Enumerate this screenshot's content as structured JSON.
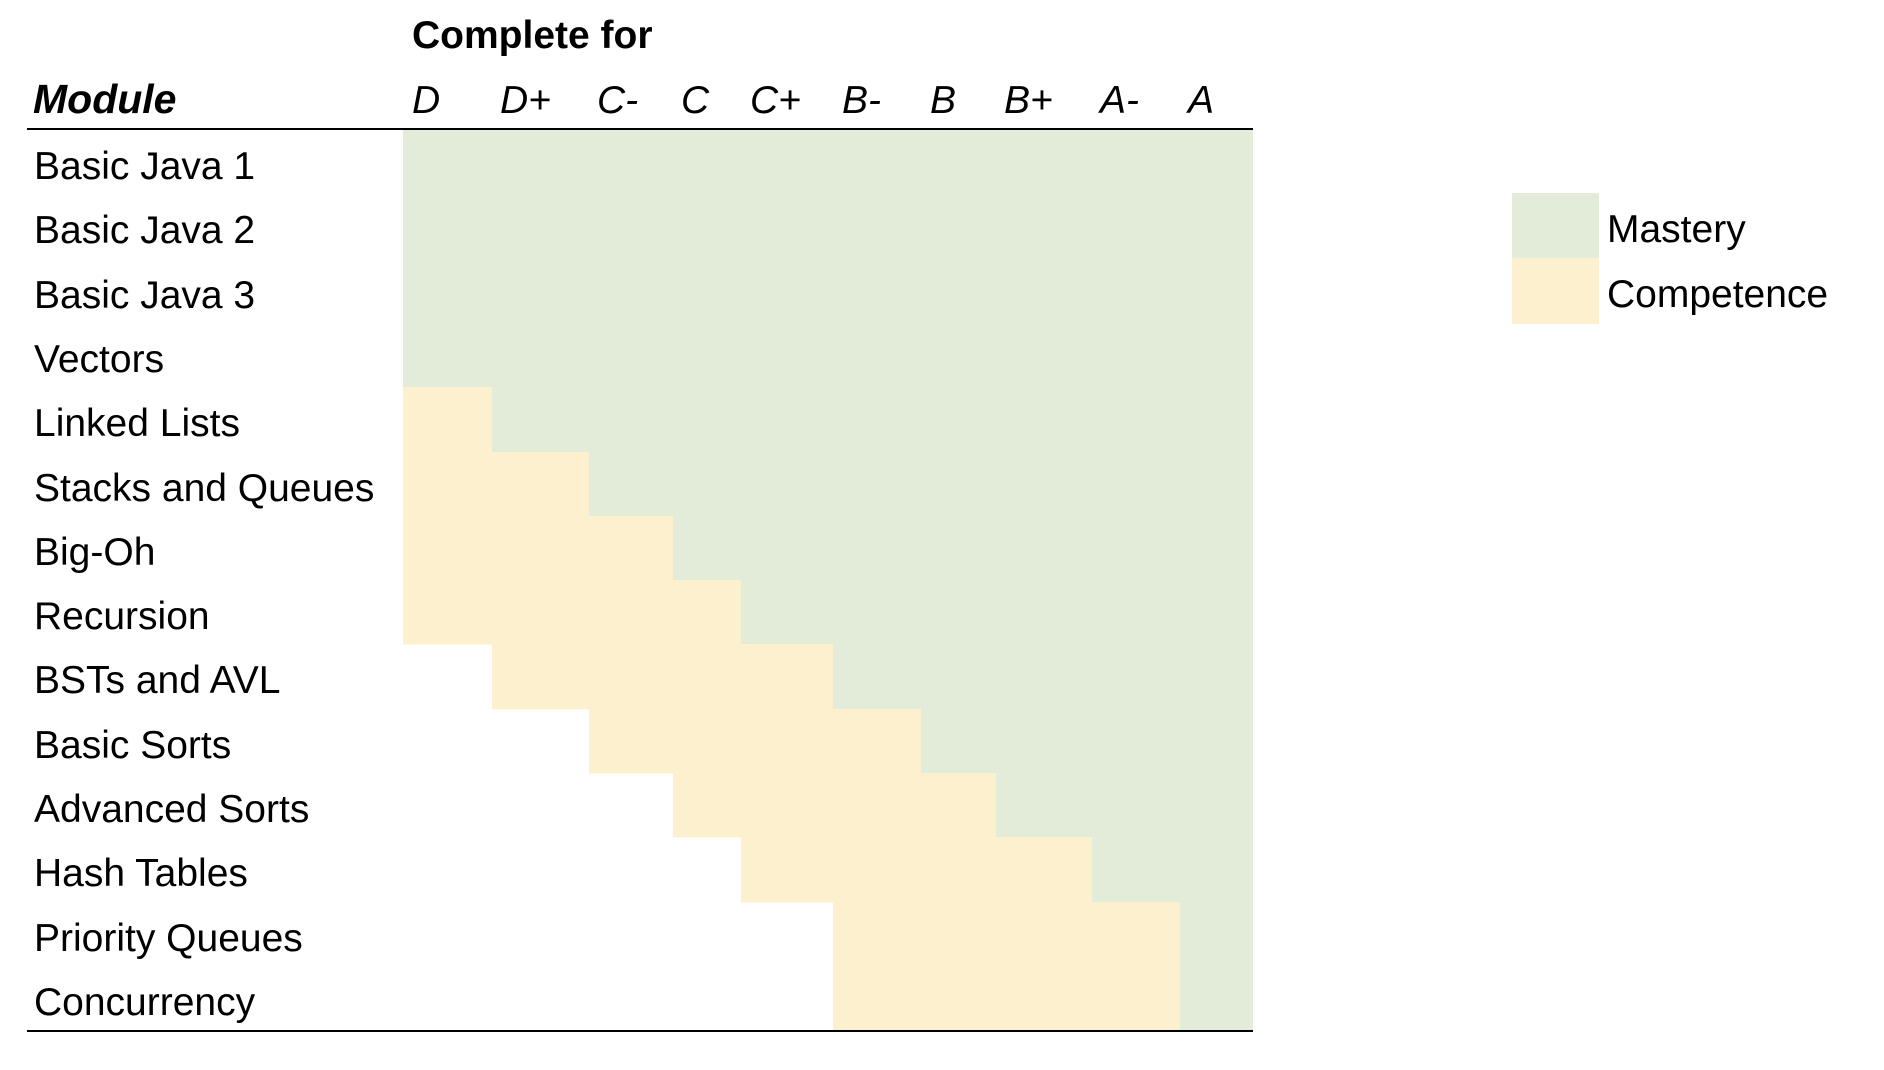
{
  "chart_data": {
    "type": "table",
    "group_header": "Complete for",
    "row_header": "Module",
    "columns": [
      "D",
      "D+",
      "C-",
      "C",
      "C+",
      "B-",
      "B",
      "B+",
      "A-",
      "A"
    ],
    "rows": [
      "Basic Java 1",
      "Basic Java 2",
      "Basic Java 3",
      "Vectors",
      "Linked Lists",
      "Stacks and Queues",
      "Big-Oh",
      "Recursion",
      "BSTs and AVL",
      "Basic Sorts",
      "Advanced Sorts",
      "Hash Tables",
      "Priority Queues",
      "Concurrency"
    ],
    "cells": [
      [
        "M",
        "M",
        "M",
        "M",
        "M",
        "M",
        "M",
        "M",
        "M",
        "M"
      ],
      [
        "M",
        "M",
        "M",
        "M",
        "M",
        "M",
        "M",
        "M",
        "M",
        "M"
      ],
      [
        "M",
        "M",
        "M",
        "M",
        "M",
        "M",
        "M",
        "M",
        "M",
        "M"
      ],
      [
        "M",
        "M",
        "M",
        "M",
        "M",
        "M",
        "M",
        "M",
        "M",
        "M"
      ],
      [
        "C",
        "M",
        "M",
        "M",
        "M",
        "M",
        "M",
        "M",
        "M",
        "M"
      ],
      [
        "C",
        "C",
        "M",
        "M",
        "M",
        "M",
        "M",
        "M",
        "M",
        "M"
      ],
      [
        "C",
        "C",
        "C",
        "M",
        "M",
        "M",
        "M",
        "M",
        "M",
        "M"
      ],
      [
        "C",
        "C",
        "C",
        "C",
        "M",
        "M",
        "M",
        "M",
        "M",
        "M"
      ],
      [
        "",
        "C",
        "C",
        "C",
        "C",
        "M",
        "M",
        "M",
        "M",
        "M"
      ],
      [
        "",
        "",
        "C",
        "C",
        "C",
        "C",
        "M",
        "M",
        "M",
        "M"
      ],
      [
        "",
        "",
        "",
        "C",
        "C",
        "C",
        "C",
        "M",
        "M",
        "M"
      ],
      [
        "",
        "",
        "",
        "",
        "C",
        "C",
        "C",
        "C",
        "M",
        "M"
      ],
      [
        "",
        "",
        "",
        "",
        "",
        "C",
        "C",
        "C",
        "C",
        "M"
      ],
      [
        "",
        "",
        "",
        "",
        "",
        "C",
        "C",
        "C",
        "C",
        "M"
      ]
    ],
    "legend": [
      {
        "key": "M",
        "label": "Mastery",
        "color": "#e2ecd9"
      },
      {
        "key": "C",
        "label": "Competence",
        "color": "#fcf0cf"
      }
    ],
    "legend_placement": "right"
  }
}
